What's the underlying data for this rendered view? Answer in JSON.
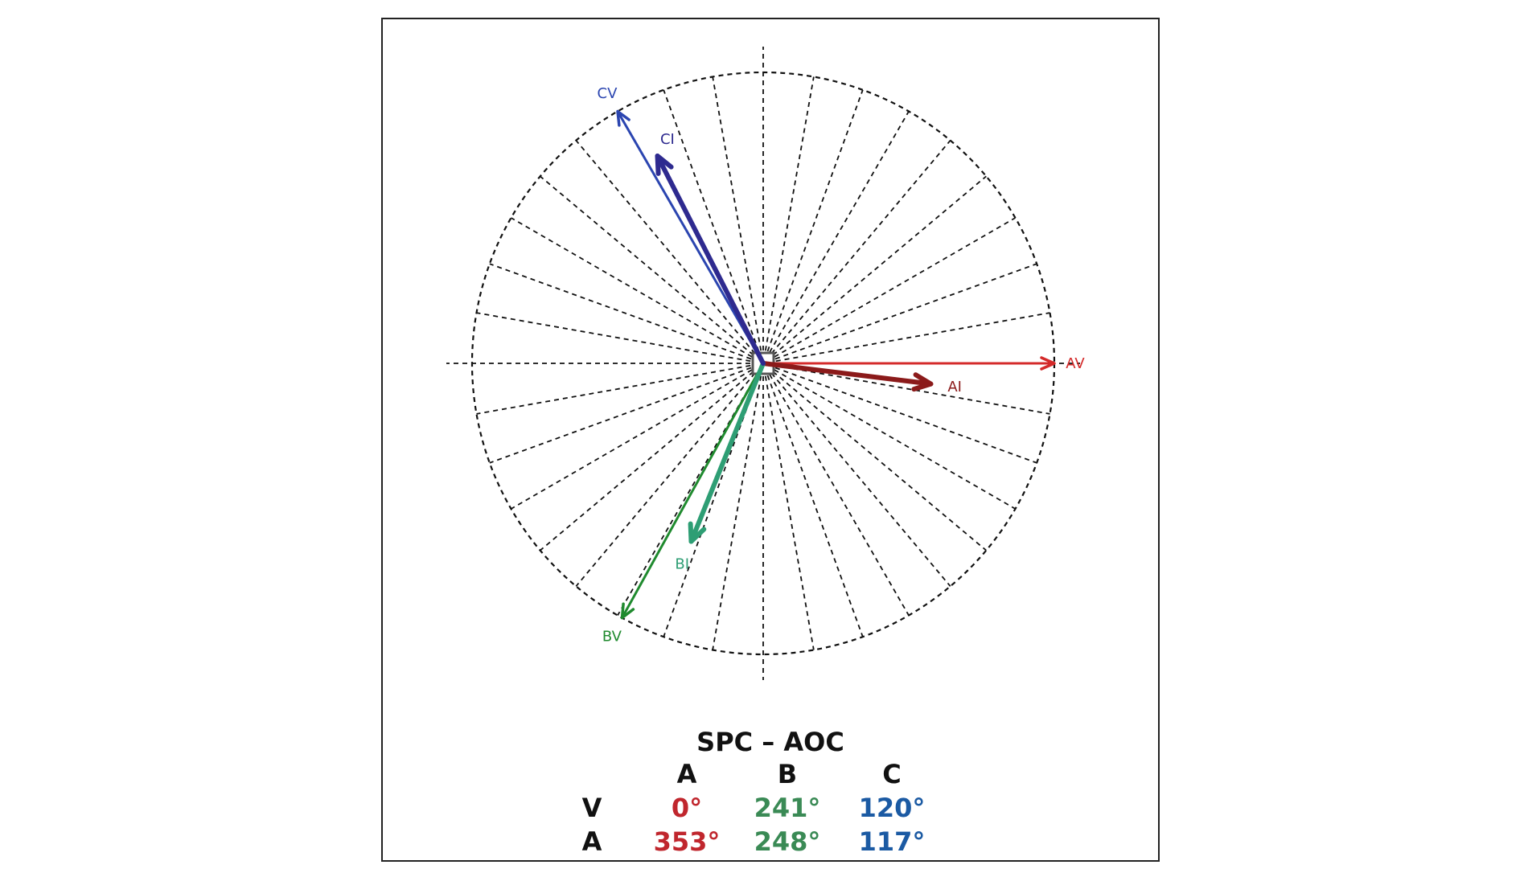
{
  "diagram": {
    "vectors": [
      {
        "id": "AV",
        "label": "AV",
        "angle_deg": 0,
        "magnitude": 1.0,
        "color": "#d42a2a",
        "kind": "voltage"
      },
      {
        "id": "AI",
        "label": "AI",
        "angle_deg": 353,
        "magnitude": 0.58,
        "color": "#8b1a1a",
        "kind": "current"
      },
      {
        "id": "BV",
        "label": "BV",
        "angle_deg": 241,
        "magnitude": 1.0,
        "color": "#1f8a2e",
        "kind": "voltage"
      },
      {
        "id": "BI",
        "label": "BI",
        "angle_deg": 248,
        "magnitude": 0.66,
        "color": "#2e9e74",
        "kind": "current"
      },
      {
        "id": "CV",
        "label": "CV",
        "angle_deg": 120,
        "magnitude": 1.0,
        "color": "#2b45b0",
        "kind": "voltage"
      },
      {
        "id": "CI",
        "label": "CI",
        "angle_deg": 117,
        "magnitude": 0.8,
        "color": "#2e2a8f",
        "kind": "current"
      }
    ]
  },
  "table": {
    "title": "SPC – AOC",
    "columns": [
      "A",
      "B",
      "C"
    ],
    "rows": [
      {
        "label": "V",
        "values": [
          "0°",
          "241°",
          "120°"
        ]
      },
      {
        "label": "A",
        "values": [
          "353°",
          "248°",
          "117°"
        ]
      }
    ],
    "column_colors": [
      "#c0262d",
      "#3a8a55",
      "#1b5aa3"
    ]
  }
}
